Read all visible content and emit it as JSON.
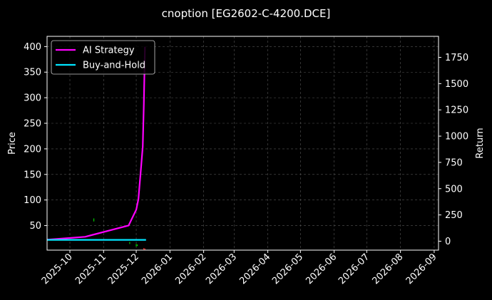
{
  "chart_data": {
    "type": "line",
    "title": "cnoption [EG2602-C-4200.DCE]",
    "xlabel": "",
    "ylabel": "Price",
    "y2label": "Return",
    "x_ticks": [
      "2025-10",
      "2025-11",
      "2025-12",
      "2026-01",
      "2026-02",
      "2026-03",
      "2026-04",
      "2026-05",
      "2026-06",
      "2026-07",
      "2026-08",
      "2026-09"
    ],
    "xlim": [
      "2025-09-10",
      "2026-09-05"
    ],
    "ylim": [
      2,
      420
    ],
    "y_ticks": [
      50,
      100,
      150,
      200,
      250,
      300,
      350,
      400
    ],
    "y2lim": [
      -85,
      1950
    ],
    "y2_ticks": [
      0,
      250,
      500,
      750,
      1000,
      1250,
      1500,
      1750
    ],
    "grid": true,
    "legend_position": "top-left",
    "series": [
      {
        "name": "AI Strategy",
        "color": "#ff00ff",
        "axis": "right",
        "x": [
          "2025-09-10",
          "2025-10-01",
          "2025-10-15",
          "2025-11-24",
          "2025-12-01",
          "2025-12-03",
          "2025-12-05",
          "2025-12-07",
          "2025-12-08",
          "2025-12-09"
        ],
        "values": [
          15,
          30,
          42,
          150,
          300,
          400,
          650,
          900,
          1300,
          1850
        ]
      },
      {
        "name": "Buy-and-Hold",
        "color": "#00e5ff",
        "axis": "right",
        "x": [
          "2025-09-10",
          "2025-12-10"
        ],
        "values": [
          13,
          13
        ]
      }
    ],
    "price_marks": [
      {
        "date": "2025-10-23",
        "low": 58,
        "high": 64,
        "color": "#00cc00"
      },
      {
        "date": "2025-11-25",
        "low": 14,
        "high": 18,
        "color": "#00cc00"
      },
      {
        "date": "2025-12-01",
        "low": 9,
        "high": 14,
        "color": "#00cc00"
      },
      {
        "date": "2025-12-02",
        "low": 10,
        "high": 13,
        "color": "#00cc00"
      },
      {
        "date": "2025-12-08",
        "low": 3,
        "high": 6,
        "color": "#ff3333"
      },
      {
        "date": "2025-12-09",
        "low": 3,
        "high": 5,
        "color": "#ff3333"
      }
    ]
  }
}
